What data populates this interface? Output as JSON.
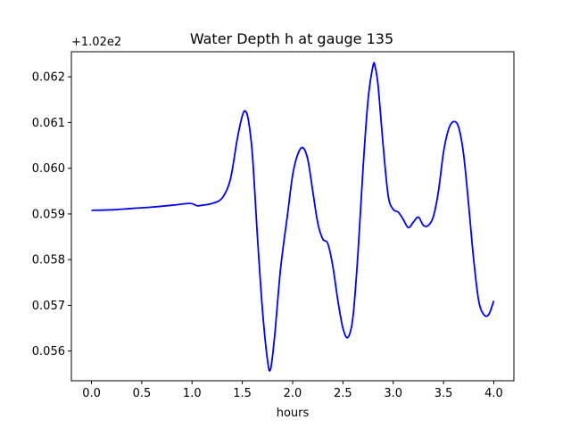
{
  "chart_data": {
    "type": "line",
    "title": "Water Depth h at gauge 135",
    "xlabel": "hours",
    "ylabel": "",
    "y_offset_label": "+1.02e2",
    "xlim": [
      -0.2,
      4.2
    ],
    "ylim": [
      0.05535,
      0.06255
    ],
    "x_ticks": [
      0.0,
      0.5,
      1.0,
      1.5,
      2.0,
      2.5,
      3.0,
      3.5,
      4.0
    ],
    "x_tick_labels": [
      "0.0",
      "0.5",
      "1.0",
      "1.5",
      "2.0",
      "2.5",
      "3.0",
      "3.5",
      "4.0"
    ],
    "y_ticks": [
      0.056,
      0.057,
      0.058,
      0.059,
      0.06,
      0.061,
      0.062
    ],
    "y_tick_labels": [
      "0.056",
      "0.057",
      "0.058",
      "0.059",
      "0.060",
      "0.061",
      "0.062"
    ],
    "grid": false,
    "series": [
      {
        "color": "#0000ff",
        "x": [
          0.0,
          0.2,
          0.4,
          0.6,
          0.8,
          0.98,
          1.05,
          1.1,
          1.2,
          1.3,
          1.38,
          1.45,
          1.5,
          1.53,
          1.56,
          1.6,
          1.65,
          1.7,
          1.75,
          1.78,
          1.82,
          1.88,
          1.95,
          2.0,
          2.05,
          2.1,
          2.15,
          2.2,
          2.25,
          2.3,
          2.35,
          2.4,
          2.45,
          2.5,
          2.55,
          2.6,
          2.65,
          2.7,
          2.75,
          2.8,
          2.82,
          2.85,
          2.9,
          2.95,
          3.0,
          3.05,
          3.1,
          3.15,
          3.2,
          3.25,
          3.3,
          3.35,
          3.4,
          3.45,
          3.5,
          3.55,
          3.6,
          3.65,
          3.7,
          3.75,
          3.8,
          3.85,
          3.9,
          3.95,
          4.0
        ],
        "y": [
          0.05908,
          0.05909,
          0.05912,
          0.05915,
          0.05919,
          0.05923,
          0.05918,
          0.05919,
          0.05923,
          0.05935,
          0.05975,
          0.06065,
          0.06115,
          0.06125,
          0.06105,
          0.0603,
          0.0585,
          0.0569,
          0.0558,
          0.0556,
          0.0563,
          0.0578,
          0.059,
          0.05985,
          0.0603,
          0.06045,
          0.0602,
          0.0595,
          0.0588,
          0.05845,
          0.05835,
          0.05785,
          0.0571,
          0.0565,
          0.0563,
          0.05675,
          0.05815,
          0.06,
          0.0615,
          0.06225,
          0.06222,
          0.0618,
          0.0605,
          0.0594,
          0.0591,
          0.05904,
          0.05888,
          0.0587,
          0.05882,
          0.05893,
          0.05875,
          0.05875,
          0.05895,
          0.0595,
          0.06035,
          0.06085,
          0.06102,
          0.0609,
          0.0603,
          0.0592,
          0.058,
          0.0571,
          0.0568,
          0.0568,
          0.0571
        ]
      }
    ]
  }
}
